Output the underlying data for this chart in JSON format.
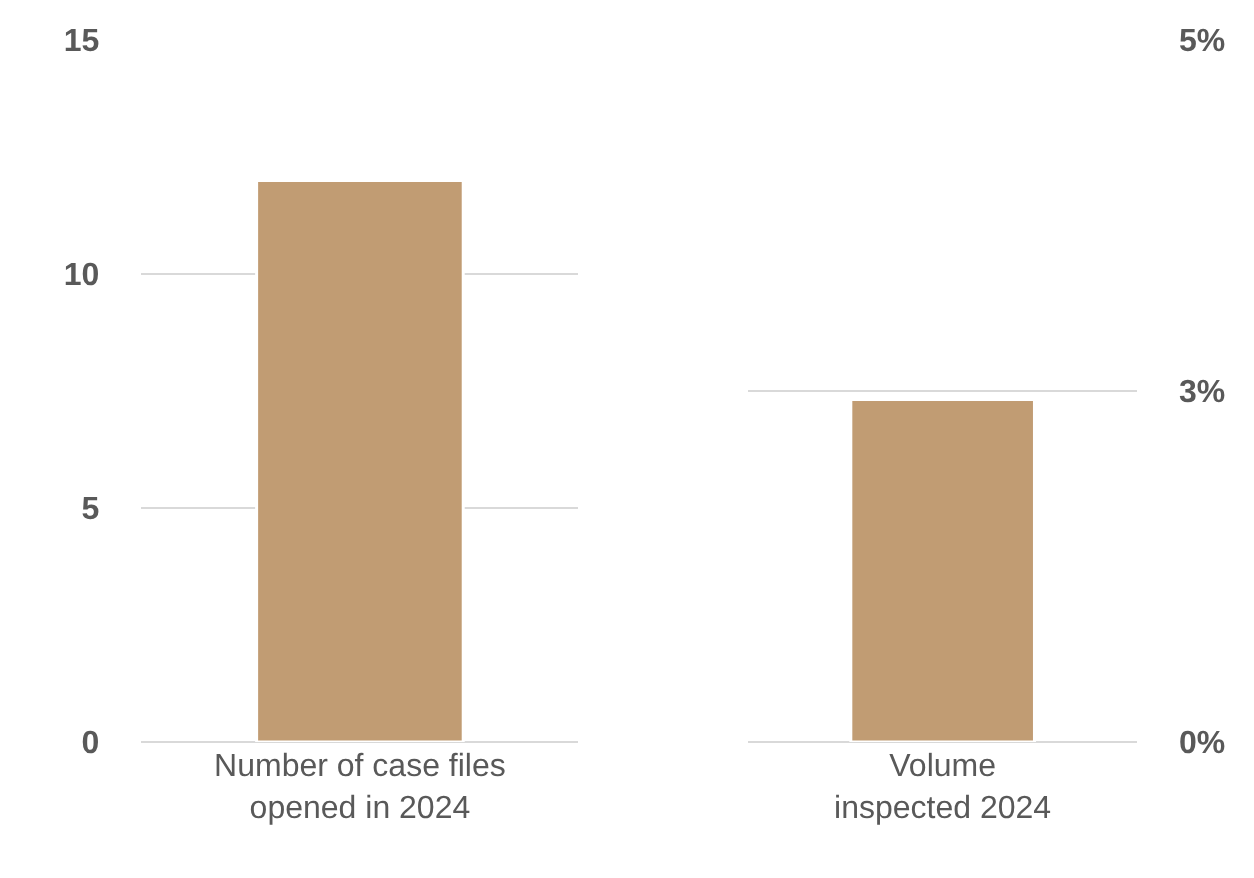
{
  "chart_data": [
    {
      "type": "bar",
      "categories": [
        "Number of case files\nopened in 2024"
      ],
      "series": [
        {
          "color": "#c19c73",
          "values": [
            12
          ]
        }
      ],
      "ylim": [
        0,
        15
      ],
      "yticks": [
        0,
        5,
        10,
        15
      ],
      "grid": "y"
    },
    {
      "type": "bar",
      "categories": [
        "Volume\ninspected 2024"
      ],
      "series": [
        {
          "color": "#c19c73",
          "values": [
            2.44
          ],
          "axis": "y2"
        }
      ],
      "y2lim": [
        0,
        5
      ],
      "y2ticks": [
        {
          "value": 0,
          "label": "0%"
        },
        {
          "value": 2.5,
          "label": "3%"
        },
        {
          "value": 5,
          "label": "5%"
        }
      ],
      "grid": "y"
    }
  ]
}
